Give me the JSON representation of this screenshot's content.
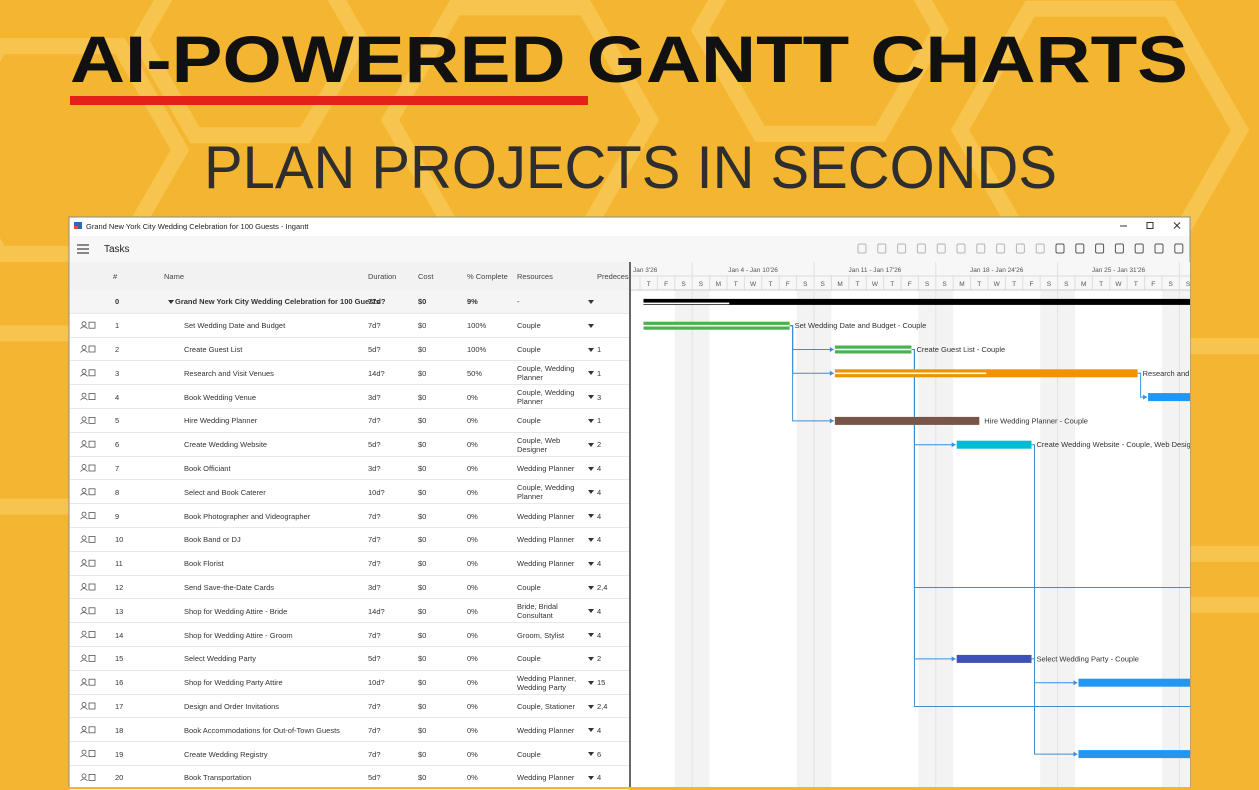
{
  "headline": "AI-POWERED GANTT CHARTS",
  "subheadline": "PLAN PROJECTS IN SECONDS",
  "window": {
    "title": "Grand New York City Wedding Celebration for 100 Guests - Ingantt",
    "view": "Tasks"
  },
  "table": {
    "columns": [
      "#",
      "Name",
      "Duration",
      "Cost",
      "% Complete",
      "Resources",
      "Predecessors"
    ],
    "rows": [
      {
        "id": 0,
        "name": "Grand New York City Wedding Celebration for 100 Guests",
        "duration": "77d?",
        "cost": "$0",
        "complete": 9,
        "complete_label": "9%",
        "resources": "-",
        "predecessors": null,
        "gantt": [
          0.2,
          55
        ],
        "color": "#000000",
        "bar_label": null
      },
      {
        "id": 1,
        "name": "Set Wedding Date and Budget",
        "duration": "7d?",
        "cost": "$0",
        "complete": 100,
        "complete_label": "100%",
        "resources": "Couple",
        "predecessors": null,
        "gantt": [
          0.2,
          8.6
        ],
        "color": "#4caf50",
        "bar_label": "Set Wedding Date and Budget - Couple"
      },
      {
        "id": 2,
        "name": "Create Guest List",
        "duration": "5d?",
        "cost": "$0",
        "complete": 100,
        "complete_label": "100%",
        "resources": "Couple",
        "predecessors": "1",
        "gantt": [
          11.2,
          15.6
        ],
        "color": "#4caf50",
        "bar_label": "Create Guest List - Couple"
      },
      {
        "id": 3,
        "name": "Research and Visit Venues",
        "duration": "14d?",
        "cost": "$0",
        "complete": 50,
        "complete_label": "50%",
        "resources": "Couple, Wedding Planner",
        "predecessors": "1",
        "gantt": [
          11.2,
          28.6
        ],
        "color": "#f39200",
        "bar_label": "Research and Visit Venues - Couple, Wedding Planner"
      },
      {
        "id": 4,
        "name": "Book Wedding Venue",
        "duration": "3d?",
        "cost": "$0",
        "complete": 0,
        "complete_label": "0%",
        "resources": "Couple, Wedding Planner",
        "predecessors": "3",
        "gantt": [
          29.2,
          33.5
        ],
        "color": "#2196f3",
        "bar_label": null
      },
      {
        "id": 5,
        "name": "Hire Wedding Planner",
        "duration": "7d?",
        "cost": "$0",
        "complete": 0,
        "complete_label": "0%",
        "resources": "Couple",
        "predecessors": "1",
        "gantt": [
          11.2,
          19.5
        ],
        "color": "#795548",
        "bar_label": "Hire Wedding Planner - Couple"
      },
      {
        "id": 6,
        "name": "Create Wedding Website",
        "duration": "5d?",
        "cost": "$0",
        "complete": 0,
        "complete_label": "0%",
        "resources": "Couple, Web Designer",
        "predecessors": "2",
        "gantt": [
          18.2,
          22.5
        ],
        "color": "#00bcd4",
        "bar_label": "Create Wedding Website - Couple, Web Designer"
      },
      {
        "id": 7,
        "name": "Book Officiant",
        "duration": "3d?",
        "cost": "$0",
        "complete": 0,
        "complete_label": "0%",
        "resources": "Wedding Planner",
        "predecessors": "4",
        "gantt": null,
        "color": null,
        "bar_label": null
      },
      {
        "id": 8,
        "name": "Select and Book Caterer",
        "duration": "10d?",
        "cost": "$0",
        "complete": 0,
        "complete_label": "0%",
        "resources": "Couple, Wedding Planner",
        "predecessors": "4",
        "gantt": null,
        "color": null,
        "bar_label": null
      },
      {
        "id": 9,
        "name": "Book Photographer and Videographer",
        "duration": "7d?",
        "cost": "$0",
        "complete": 0,
        "complete_label": "0%",
        "resources": "Wedding Planner",
        "predecessors": "4",
        "gantt": null,
        "color": null,
        "bar_label": null
      },
      {
        "id": 10,
        "name": "Book Band or DJ",
        "duration": "7d?",
        "cost": "$0",
        "complete": 0,
        "complete_label": "0%",
        "resources": "Wedding Planner",
        "predecessors": "4",
        "gantt": null,
        "color": null,
        "bar_label": null
      },
      {
        "id": 11,
        "name": "Book Florist",
        "duration": "7d?",
        "cost": "$0",
        "complete": 0,
        "complete_label": "0%",
        "resources": "Wedding Planner",
        "predecessors": "4",
        "gantt": null,
        "color": null,
        "bar_label": null
      },
      {
        "id": 12,
        "name": "Send Save-the-Date Cards",
        "duration": "3d?",
        "cost": "$0",
        "complete": 0,
        "complete_label": "0%",
        "resources": "Couple",
        "predecessors": "2,4",
        "gantt": null,
        "color": null,
        "bar_label": null
      },
      {
        "id": 13,
        "name": "Shop for Wedding Attire - Bride",
        "duration": "14d?",
        "cost": "$0",
        "complete": 0,
        "complete_label": "0%",
        "resources": "Bride, Bridal Consultant",
        "predecessors": "4",
        "gantt": null,
        "color": null,
        "bar_label": null
      },
      {
        "id": 14,
        "name": "Shop for Wedding Attire - Groom",
        "duration": "7d?",
        "cost": "$0",
        "complete": 0,
        "complete_label": "0%",
        "resources": "Groom, Stylist",
        "predecessors": "4",
        "gantt": null,
        "color": null,
        "bar_label": null
      },
      {
        "id": 15,
        "name": "Select Wedding Party",
        "duration": "5d?",
        "cost": "$0",
        "complete": 0,
        "complete_label": "0%",
        "resources": "Couple",
        "predecessors": "2",
        "gantt": [
          18.2,
          22.5
        ],
        "color": "#3f51b5",
        "bar_label": "Select Wedding Party - Couple"
      },
      {
        "id": 16,
        "name": "Shop for Wedding Party Attire",
        "duration": "10d?",
        "cost": "$0",
        "complete": 0,
        "complete_label": "0%",
        "resources": "Wedding Planner, Wedding Party",
        "predecessors": "15",
        "gantt": [
          25.2,
          32
        ],
        "color": "#2196f3",
        "bar_label": null
      },
      {
        "id": 17,
        "name": "Design and Order Invitations",
        "duration": "7d?",
        "cost": "$0",
        "complete": 0,
        "complete_label": "0%",
        "resources": "Couple, Stationer",
        "predecessors": "2,4",
        "gantt": null,
        "color": null,
        "bar_label": null
      },
      {
        "id": 18,
        "name": "Book Accommodations for Out-of-Town Guests",
        "duration": "7d?",
        "cost": "$0",
        "complete": 0,
        "complete_label": "0%",
        "resources": "Wedding Planner",
        "predecessors": "4",
        "gantt": null,
        "color": null,
        "bar_label": null
      },
      {
        "id": 19,
        "name": "Create Wedding Registry",
        "duration": "7d?",
        "cost": "$0",
        "complete": 0,
        "complete_label": "0%",
        "resources": "Couple",
        "predecessors": "6",
        "gantt": [
          25.2,
          32
        ],
        "color": "#2196f3",
        "bar_label": null
      },
      {
        "id": 20,
        "name": "Book Transportation",
        "duration": "5d?",
        "cost": "$0",
        "complete": 0,
        "complete_label": "0%",
        "resources": "Wedding Planner",
        "predecessors": "4",
        "gantt": null,
        "color": null,
        "bar_label": null
      }
    ]
  },
  "timeline": {
    "weeks": [
      "Jan 3'26",
      "Jan 4 - Jan 10'26",
      "Jan 11 - Jan 17'26",
      "Jan 18 - Jan 24'26",
      "Jan 25 - Jan 31'26"
    ],
    "days": [
      "T",
      "F",
      "S",
      "S",
      "M",
      "T",
      "W",
      "T",
      "F",
      "S",
      "S",
      "M",
      "T",
      "W",
      "T",
      "F",
      "S",
      "S",
      "M",
      "T",
      "W",
      "T",
      "F",
      "S",
      "S",
      "M",
      "T",
      "W",
      "T",
      "F",
      "S",
      "S"
    ]
  }
}
